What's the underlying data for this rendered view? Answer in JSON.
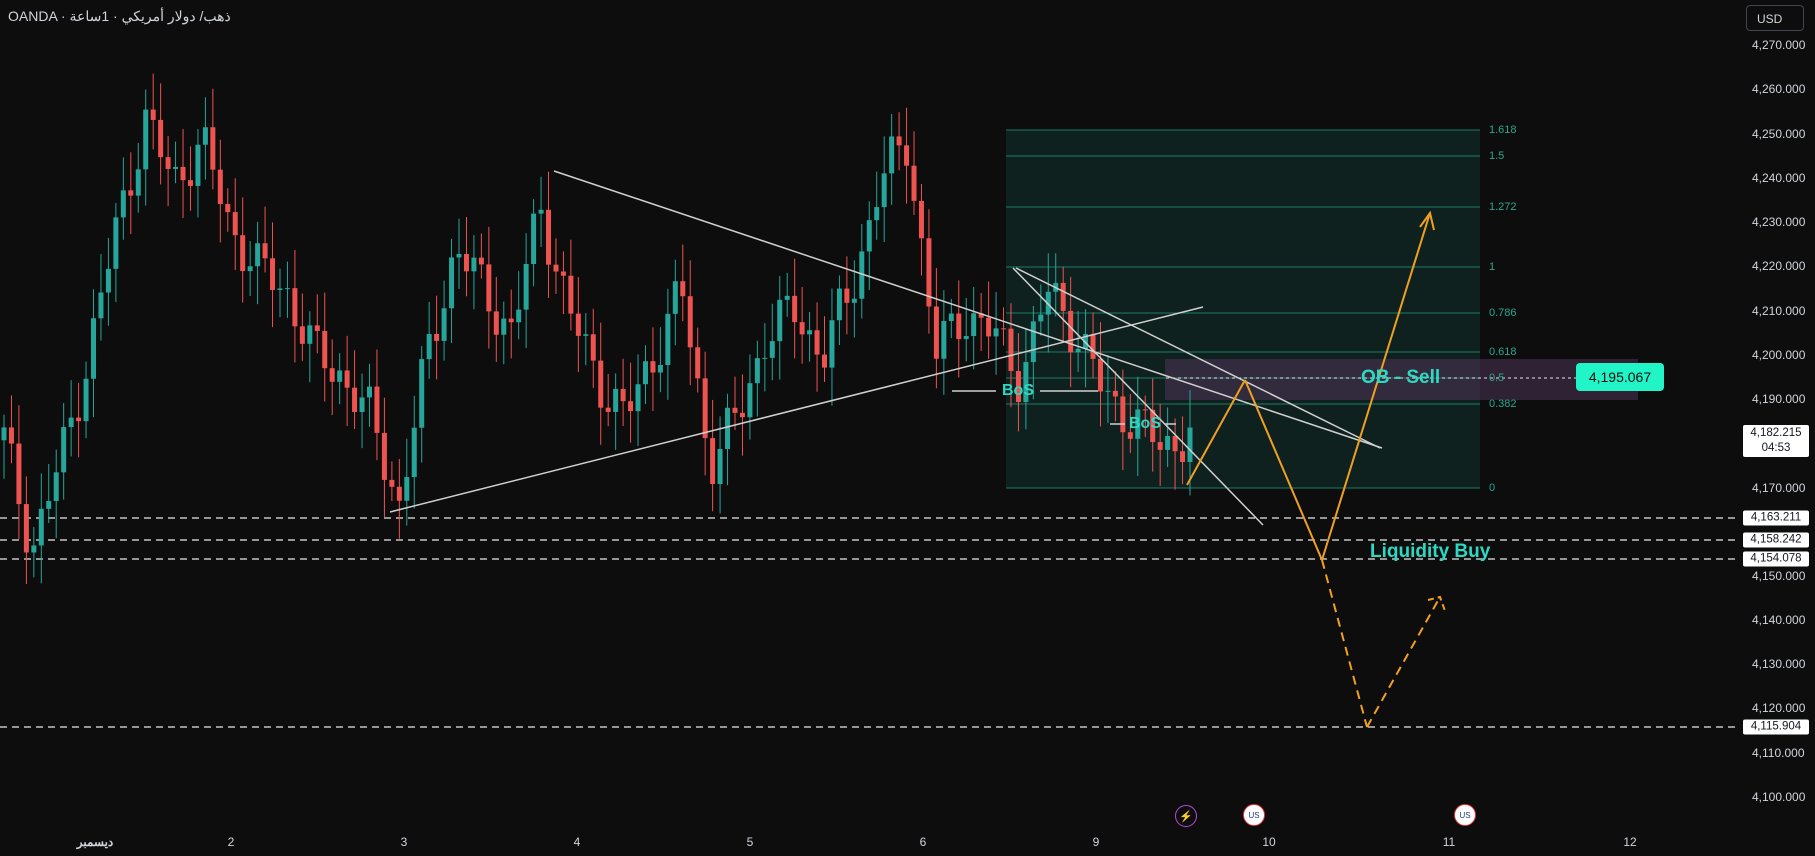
{
  "header": {
    "symbol_title": "OANDA · ذهب/ دولار أمريكي · 1ساعة"
  },
  "currency_button": "USD",
  "price_axis": {
    "ticks": [
      "4,270.000",
      "4,260.000",
      "4,250.000",
      "4,240.000",
      "4,230.000",
      "4,220.000",
      "4,210.000",
      "4,200.000",
      "4,190.000",
      "4,170.000",
      "4,150.000",
      "4,140.000",
      "4,130.000",
      "4,120.000",
      "4,110.000",
      "4,100.000"
    ]
  },
  "time_axis": {
    "ticks": [
      "ديسمبر",
      "2",
      "3",
      "4",
      "5",
      "6",
      "9",
      "10",
      "11",
      "12"
    ]
  },
  "last_price": {
    "value": "4,182.215",
    "countdown": "04:53"
  },
  "price_labels": [
    "4,163.211",
    "4,158.242",
    "4,154.078",
    "4,115.904"
  ],
  "ob_price_label": "4,195.067",
  "annotations": {
    "ob_sell": "OB - Sell",
    "liquidity_buy": "Liquidity Buy",
    "bos_1": "BoS",
    "bos_2": "BoS"
  },
  "fib_levels": [
    "1.618",
    "1.5",
    "1.272",
    "1",
    "0.786",
    "0.618",
    "0.5",
    "0.382",
    "0"
  ],
  "events": [
    {
      "icon": "lightning-icon",
      "glyph": "⚡"
    },
    {
      "icon": "us-flag-icon",
      "glyph": "US"
    },
    {
      "icon": "us-flag-icon",
      "glyph": "US"
    }
  ],
  "chart_data": {
    "type": "candlestick",
    "symbol": "OANDA · ذهب/ دولار أمريكي · 1ساعة",
    "ylim": [
      4095,
      4274
    ],
    "x_ticks": [
      "ديسمبر",
      "2",
      "3",
      "4",
      "5",
      "6",
      "9",
      "10",
      "11",
      "12"
    ],
    "approx_closes": [
      4180,
      4155,
      4175,
      4200,
      4230,
      4255,
      4240,
      4250,
      4230,
      4220,
      4215,
      4200,
      4195,
      4185,
      4165,
      4200,
      4225,
      4215,
      4205,
      4235,
      4210,
      4195,
      4185,
      4200,
      4215,
      4175,
      4185,
      4205,
      4210,
      4200,
      4215,
      4240,
      4250,
      4200,
      4210,
      4205,
      4195,
      4215,
      4205,
      4190,
      4185,
      4178,
      4182
    ],
    "horizontal_levels": [
      4163.211,
      4158.242,
      4154.078,
      4115.904,
      4195.067
    ],
    "colors": {
      "up": "#26a69a",
      "down": "#ef5350",
      "projection": "#f0a020",
      "trendline": "#d0d0d0"
    }
  }
}
